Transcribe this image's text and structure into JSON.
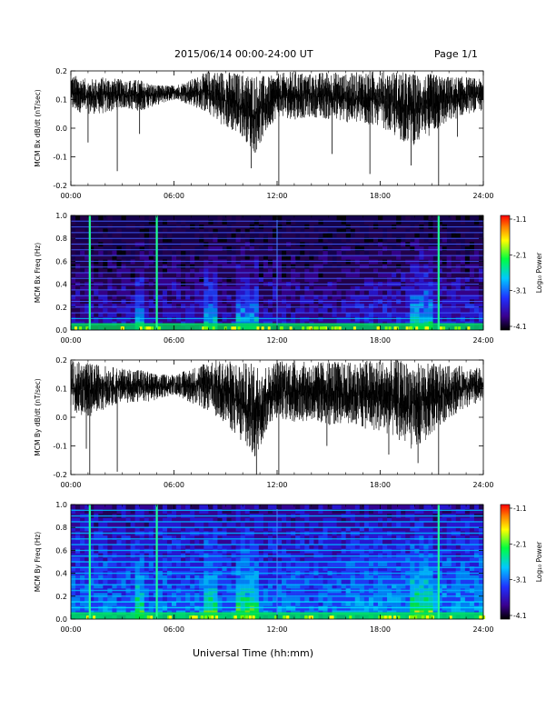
{
  "header": {
    "title": "2015/06/14  00:00-24:00 UT",
    "page": "Page 1/1"
  },
  "xlabel": "Universal Time (hh:mm)",
  "chart_data": [
    {
      "type": "line",
      "ylabel": "MCM Bx dB/dt (nT/sec)",
      "xlim": [
        0,
        24
      ],
      "ylim": [
        -0.2,
        0.2
      ],
      "xticks": [
        "00:00",
        "06:00",
        "12:00",
        "18:00",
        "24:00"
      ],
      "yticks": [
        "-0.2",
        "-0.1",
        "0.0",
        "0.1",
        "0.2"
      ],
      "baseline": 0.12,
      "envelope": [
        {
          "t": 0,
          "lo": 0.06,
          "hi": 0.19
        },
        {
          "t": 1,
          "lo": 0.05,
          "hi": 0.17
        },
        {
          "t": 2,
          "lo": 0.05,
          "hi": 0.18
        },
        {
          "t": 3,
          "lo": 0.07,
          "hi": 0.17
        },
        {
          "t": 4,
          "lo": 0.06,
          "hi": 0.17
        },
        {
          "t": 5,
          "lo": 0.08,
          "hi": 0.15
        },
        {
          "t": 6,
          "lo": 0.1,
          "hi": 0.15
        },
        {
          "t": 7,
          "lo": 0.08,
          "hi": 0.17
        },
        {
          "t": 8,
          "lo": 0.05,
          "hi": 0.2
        },
        {
          "t": 9,
          "lo": 0.0,
          "hi": 0.2
        },
        {
          "t": 10,
          "lo": -0.03,
          "hi": 0.19
        },
        {
          "t": 10.7,
          "lo": -0.09,
          "hi": 0.19
        },
        {
          "t": 11.5,
          "lo": 0.0,
          "hi": 0.18
        },
        {
          "t": 12,
          "lo": 0.04,
          "hi": 0.19
        },
        {
          "t": 13,
          "lo": 0.03,
          "hi": 0.2
        },
        {
          "t": 14,
          "lo": 0.04,
          "hi": 0.19
        },
        {
          "t": 15,
          "lo": 0.03,
          "hi": 0.2
        },
        {
          "t": 16,
          "lo": 0.02,
          "hi": 0.19
        },
        {
          "t": 17,
          "lo": 0.01,
          "hi": 0.2
        },
        {
          "t": 18,
          "lo": 0.01,
          "hi": 0.2
        },
        {
          "t": 19,
          "lo": -0.04,
          "hi": 0.2
        },
        {
          "t": 20,
          "lo": -0.06,
          "hi": 0.19
        },
        {
          "t": 21,
          "lo": -0.02,
          "hi": 0.19
        },
        {
          "t": 22,
          "lo": 0.02,
          "hi": 0.18
        },
        {
          "t": 23,
          "lo": 0.05,
          "hi": 0.18
        },
        {
          "t": 24,
          "lo": 0.06,
          "hi": 0.17
        }
      ],
      "spikes": [
        {
          "t": 1.0,
          "y": -0.05
        },
        {
          "t": 2.7,
          "y": -0.15
        },
        {
          "t": 4.0,
          "y": -0.02
        },
        {
          "t": 10.5,
          "y": -0.14
        },
        {
          "t": 12.1,
          "y": -0.21
        },
        {
          "t": 15.2,
          "y": -0.09
        },
        {
          "t": 17.4,
          "y": -0.16
        },
        {
          "t": 19.8,
          "y": -0.13
        },
        {
          "t": 21.4,
          "y": -0.21
        },
        {
          "t": 22.5,
          "y": -0.03
        }
      ]
    },
    {
      "type": "heatmap",
      "ylabel": "MCM Bx Freq (Hz)",
      "xlim": [
        0,
        24
      ],
      "ylim": [
        0,
        1.0
      ],
      "xticks": [
        "00:00",
        "06:00",
        "12:00",
        "18:00",
        "24:00"
      ],
      "yticks": [
        "0.0",
        "0.2",
        "0.4",
        "0.6",
        "0.8",
        "1.0"
      ],
      "colorbar": {
        "label": "Log₁₀ Power",
        "ticks": [
          "-1.1",
          "-2.1",
          "-3.1",
          "-4.1"
        ],
        "range": [
          -4.1,
          -1.1
        ]
      },
      "harmonics_hz": [
        0.05,
        0.1,
        0.15,
        0.2,
        0.25,
        0.3,
        0.35,
        0.4,
        0.45,
        0.5,
        0.55,
        0.6,
        0.65,
        0.7,
        0.75,
        0.8,
        0.85,
        0.9,
        0.95
      ],
      "broadband_lines_t": [
        1.1,
        5.0,
        12.0,
        21.4
      ],
      "active_intervals": [
        {
          "t0": 3.8,
          "t1": 4.3
        },
        {
          "t0": 7.8,
          "t1": 8.4
        },
        {
          "t0": 9.6,
          "t1": 10.9
        },
        {
          "t0": 19.8,
          "t1": 21.0
        }
      ]
    },
    {
      "type": "line",
      "ylabel": "MCM By dB/dt (nT/sec)",
      "xlim": [
        0,
        24
      ],
      "ylim": [
        -0.2,
        0.2
      ],
      "xticks": [
        "00:00",
        "06:00",
        "12:00",
        "18:00",
        "24:00"
      ],
      "yticks": [
        "-0.2",
        "-0.1",
        "0.0",
        "0.1",
        "0.2"
      ],
      "baseline": 0.12,
      "envelope": [
        {
          "t": 0,
          "lo": 0.02,
          "hi": 0.2
        },
        {
          "t": 1,
          "lo": 0.0,
          "hi": 0.19
        },
        {
          "t": 2,
          "lo": 0.03,
          "hi": 0.18
        },
        {
          "t": 3,
          "lo": 0.05,
          "hi": 0.17
        },
        {
          "t": 4,
          "lo": 0.05,
          "hi": 0.17
        },
        {
          "t": 5,
          "lo": 0.06,
          "hi": 0.15
        },
        {
          "t": 6,
          "lo": 0.08,
          "hi": 0.15
        },
        {
          "t": 7,
          "lo": 0.05,
          "hi": 0.17
        },
        {
          "t": 8,
          "lo": 0.02,
          "hi": 0.2
        },
        {
          "t": 9,
          "lo": -0.02,
          "hi": 0.2
        },
        {
          "t": 10,
          "lo": -0.1,
          "hi": 0.19
        },
        {
          "t": 10.7,
          "lo": -0.15,
          "hi": 0.19
        },
        {
          "t": 11.5,
          "lo": -0.03,
          "hi": 0.18
        },
        {
          "t": 12,
          "lo": 0.0,
          "hi": 0.2
        },
        {
          "t": 13,
          "lo": -0.02,
          "hi": 0.2
        },
        {
          "t": 14,
          "lo": -0.01,
          "hi": 0.19
        },
        {
          "t": 15,
          "lo": -0.03,
          "hi": 0.2
        },
        {
          "t": 16,
          "lo": -0.02,
          "hi": 0.19
        },
        {
          "t": 17,
          "lo": -0.04,
          "hi": 0.2
        },
        {
          "t": 18,
          "lo": -0.05,
          "hi": 0.2
        },
        {
          "t": 19,
          "lo": -0.08,
          "hi": 0.2
        },
        {
          "t": 20,
          "lo": -0.12,
          "hi": 0.19
        },
        {
          "t": 21,
          "lo": -0.06,
          "hi": 0.19
        },
        {
          "t": 22,
          "lo": 0.0,
          "hi": 0.18
        },
        {
          "t": 23,
          "lo": 0.03,
          "hi": 0.18
        },
        {
          "t": 24,
          "lo": 0.05,
          "hi": 0.17
        }
      ],
      "spikes": [
        {
          "t": 0.9,
          "y": -0.11
        },
        {
          "t": 1.1,
          "y": -0.2
        },
        {
          "t": 2.7,
          "y": -0.19
        },
        {
          "t": 10.8,
          "y": -0.2
        },
        {
          "t": 12.1,
          "y": -0.2
        },
        {
          "t": 14.9,
          "y": -0.1
        },
        {
          "t": 18.5,
          "y": -0.13
        },
        {
          "t": 20.2,
          "y": -0.16
        },
        {
          "t": 21.4,
          "y": -0.2
        }
      ]
    },
    {
      "type": "heatmap",
      "ylabel": "MCM By Freq (Hz)",
      "xlim": [
        0,
        24
      ],
      "ylim": [
        0,
        1.0
      ],
      "xticks": [
        "00:00",
        "06:00",
        "12:00",
        "18:00",
        "24:00"
      ],
      "yticks": [
        "0.0",
        "0.2",
        "0.4",
        "0.6",
        "0.8",
        "1.0"
      ],
      "colorbar": {
        "label": "Log₁₀ Power",
        "ticks": [
          "-1.1",
          "-2.1",
          "-3.1",
          "-4.1"
        ],
        "range": [
          -4.1,
          -1.1
        ]
      },
      "harmonics_hz": [
        0.05,
        0.1,
        0.15,
        0.2,
        0.25,
        0.3,
        0.35,
        0.4,
        0.45,
        0.5,
        0.55,
        0.6,
        0.65,
        0.7,
        0.75,
        0.8,
        0.85,
        0.9,
        0.95
      ],
      "broadband_lines_t": [
        1.1,
        5.0,
        12.0,
        21.4
      ],
      "active_intervals": [
        {
          "t0": 3.8,
          "t1": 4.3
        },
        {
          "t0": 7.8,
          "t1": 8.4
        },
        {
          "t0": 9.6,
          "t1": 10.9
        },
        {
          "t0": 19.8,
          "t1": 21.0
        }
      ]
    }
  ]
}
